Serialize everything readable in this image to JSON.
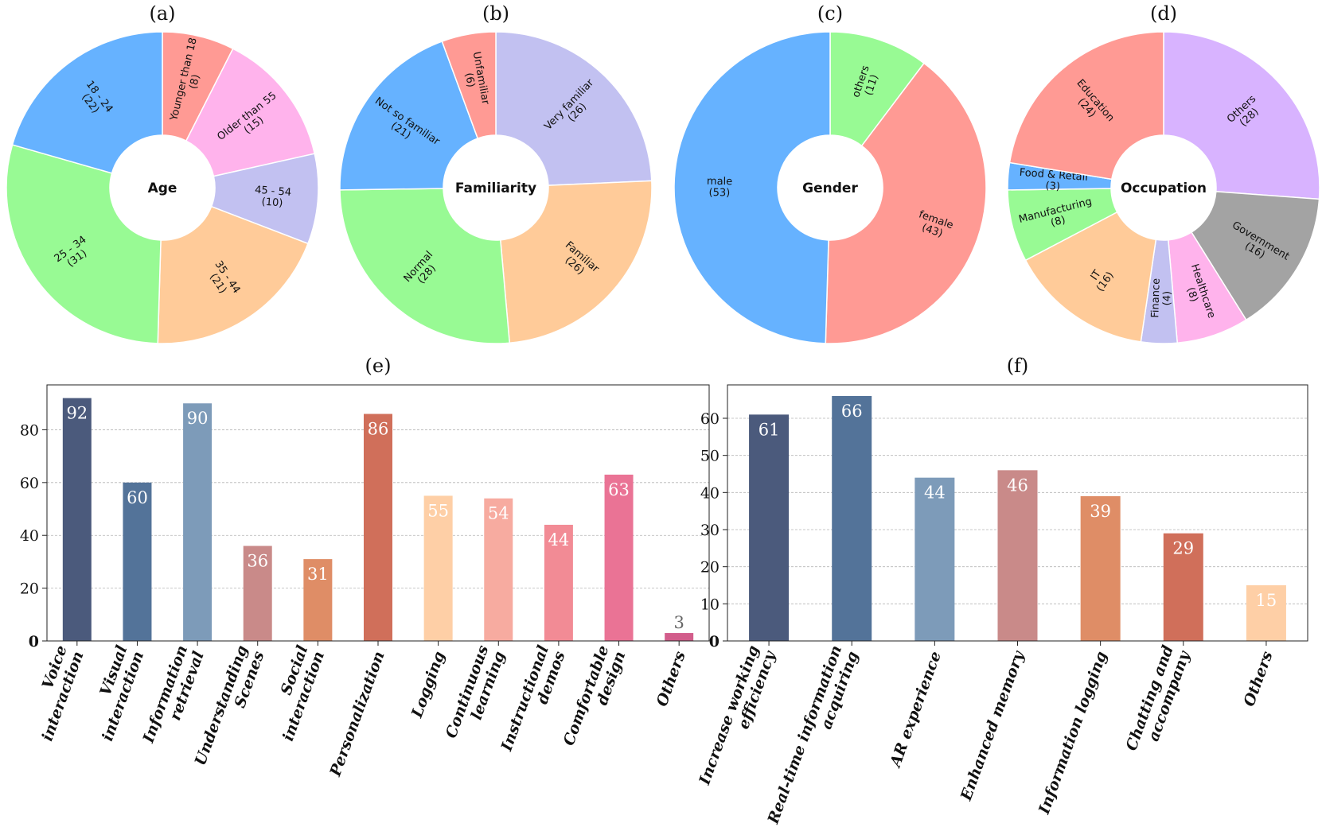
{
  "chart_data": [
    {
      "type": "pie",
      "panel": "(a)",
      "center": "Age",
      "slices": [
        {
          "label": "Younger than 18",
          "count": "(8)",
          "value": 8,
          "color": "#ff9a94"
        },
        {
          "label": "Older than 55",
          "count": "(15)",
          "value": 15,
          "color": "#ffb3ec"
        },
        {
          "label": "45 - 54",
          "count": "(10)",
          "value": 10,
          "color": "#c2c1f1"
        },
        {
          "label": "35 - 44",
          "count": "(21)",
          "value": 21,
          "color": "#ffcb99"
        },
        {
          "label": "25 - 34",
          "count": "(31)",
          "value": 31,
          "color": "#98fa94"
        },
        {
          "label": "18 - 24",
          "count": "(22)",
          "value": 22,
          "color": "#66b2ff"
        }
      ]
    },
    {
      "type": "pie",
      "panel": "(b)",
      "center": "Familiarity",
      "slices": [
        {
          "label": "Very familiar",
          "count": "(26)",
          "value": 26,
          "color": "#c2c1f1"
        },
        {
          "label": "Familiar",
          "count": "(26)",
          "value": 26,
          "color": "#ffcb99"
        },
        {
          "label": "Normal",
          "count": "(28)",
          "value": 28,
          "color": "#98fa94"
        },
        {
          "label": "Not so familiar",
          "count": "(21)",
          "value": 21,
          "color": "#66b2ff"
        },
        {
          "label": "Unfamiliar",
          "count": "(6)",
          "value": 6,
          "color": "#ff9a94"
        }
      ]
    },
    {
      "type": "pie",
      "panel": "(c)",
      "center": "Gender",
      "slices": [
        {
          "label": "others",
          "count": "(11)",
          "value": 11,
          "color": "#98fa94"
        },
        {
          "label": "female",
          "count": "(43)",
          "value": 43,
          "color": "#ff9a94"
        },
        {
          "label": "male",
          "count": "(53)",
          "value": 53,
          "color": "#66b2ff"
        }
      ]
    },
    {
      "type": "pie",
      "panel": "(d)",
      "center": "Occupation",
      "slices": [
        {
          "label": "Others",
          "count": "(28)",
          "value": 28,
          "color": "#d8b3ff"
        },
        {
          "label": "Government",
          "count": "(16)",
          "value": 16,
          "color": "#a3a3a3"
        },
        {
          "label": "Healthcare",
          "count": "(8)",
          "value": 8,
          "color": "#ffb3ec"
        },
        {
          "label": "Finance",
          "count": "(4)",
          "value": 4,
          "color": "#c2c1f1"
        },
        {
          "label": "IT",
          "count": "(16)",
          "value": 16,
          "color": "#ffcb99"
        },
        {
          "label": "Manufacturing",
          "count": "(8)",
          "value": 8,
          "color": "#98fa94"
        },
        {
          "label": "Food & Retail",
          "count": "(3)",
          "value": 3,
          "color": "#66b2ff"
        },
        {
          "label": "Education",
          "count": "(24)",
          "value": 24,
          "color": "#ff9a94"
        }
      ]
    },
    {
      "type": "bar",
      "panel": "(e)",
      "categories": [
        "Voice\ninteraction",
        "Visual\ninteraction",
        "Information\nretrieval",
        "Understanding\nScenes",
        "Social\ninteraction",
        "Personalization",
        "Logging",
        "Continuous\nlearning",
        "Instructional\ndemos",
        "Comfortable\ndesign",
        "Others"
      ],
      "values": [
        92,
        60,
        90,
        36,
        31,
        86,
        55,
        54,
        44,
        63,
        3
      ],
      "value_labels": [
        "92",
        "60",
        "90",
        "36",
        "31",
        "86",
        "55",
        "54",
        "44",
        "63",
        "3"
      ],
      "colors": [
        "#4b5a7c",
        "#537399",
        "#7d9bb9",
        "#c98a89",
        "#df8d66",
        "#d06f5a",
        "#fecfa6",
        "#f7aba0",
        "#f28b95",
        "#ea7395",
        "#d25d8b"
      ],
      "label_colors": [
        "#ffffff",
        "#ffffff",
        "#ffffff",
        "#ffffff",
        "#ffffff",
        "#ffffff",
        "#ffffff",
        "#ffffff",
        "#ffffff",
        "#ffffff",
        "#666666"
      ],
      "ylim": [
        0,
        97
      ],
      "yticks": [
        0,
        20,
        40,
        60,
        80
      ],
      "ytick_labels": [
        "0",
        "20",
        "40",
        "60",
        "80"
      ],
      "grid": "y-dashed"
    },
    {
      "type": "bar",
      "panel": "(f)",
      "categories": [
        "Increase working\nefficiency",
        "Real-time information\nacquiring",
        "AR experience",
        "Enhanced memory",
        "Information logging",
        "Chatting and\naccompany",
        "Others"
      ],
      "values": [
        61,
        66,
        44,
        46,
        39,
        29,
        15
      ],
      "value_labels": [
        "61",
        "66",
        "44",
        "46",
        "39",
        "29",
        "15"
      ],
      "colors": [
        "#4b5a7c",
        "#537399",
        "#7d9bb9",
        "#c98a89",
        "#df8d66",
        "#d06f5a",
        "#fecfa6"
      ],
      "label_colors": [
        "#ffffff",
        "#ffffff",
        "#ffffff",
        "#ffffff",
        "#ffffff",
        "#ffffff",
        "#ffffff"
      ],
      "ylim": [
        0,
        69
      ],
      "yticks": [
        0,
        10,
        20,
        30,
        40,
        50,
        60
      ],
      "ytick_labels": [
        "0",
        "10",
        "20",
        "30",
        "40",
        "50",
        "60"
      ],
      "grid": "y-dashed"
    }
  ]
}
